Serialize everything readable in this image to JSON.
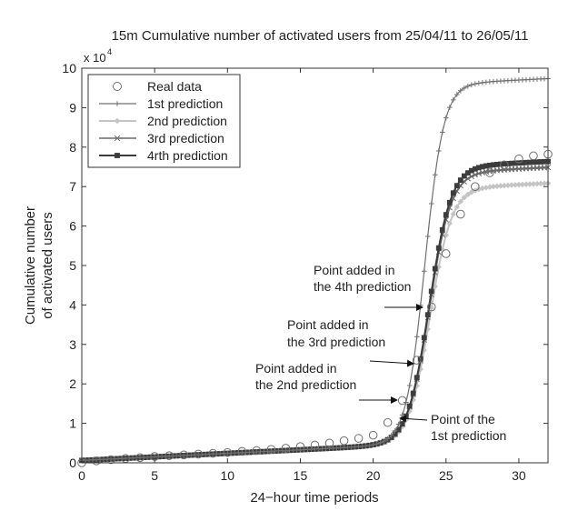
{
  "chart_data": {
    "type": "line",
    "title": "15m Cumulative number of activated users from 25/04/11 to 26/05/11",
    "xlabel": "24−hour time periods",
    "ylabel_line1": "Cumulative number",
    "ylabel_line2": "of activated users",
    "y_multiplier_base": "x 10",
    "y_multiplier_exp": "4",
    "xlim": [
      0,
      32
    ],
    "ylim": [
      0,
      10
    ],
    "y_scale_note": "values in units of 10^4 users",
    "xticks": [
      "0",
      "5",
      "10",
      "15",
      "20",
      "25",
      "30"
    ],
    "yticks": [
      "0",
      "1",
      "2",
      "3",
      "4",
      "5",
      "6",
      "7",
      "8",
      "9",
      "10"
    ],
    "grid": false,
    "legend_position": "top-left",
    "real_data": {
      "name": "Real data",
      "color": "#707070",
      "x": [
        0,
        1,
        2,
        3,
        4,
        5,
        6,
        7,
        8,
        9,
        10,
        11,
        12,
        13,
        14,
        15,
        16,
        17,
        18,
        19,
        20,
        21,
        22,
        23,
        24,
        25,
        26,
        27,
        28,
        29,
        30,
        31,
        32
      ],
      "y": [
        0.0,
        0.05,
        0.08,
        0.11,
        0.13,
        0.16,
        0.18,
        0.2,
        0.22,
        0.24,
        0.26,
        0.29,
        0.31,
        0.34,
        0.37,
        0.41,
        0.45,
        0.5,
        0.56,
        0.62,
        0.7,
        1.02,
        1.58,
        2.6,
        3.95,
        5.3,
        6.3,
        7.0,
        7.35,
        7.55,
        7.7,
        7.78,
        7.82
      ]
    },
    "series": [
      {
        "name": "1st prediction",
        "color": "#707070",
        "marker": "plus",
        "L": 9.1,
        "k": 1.55,
        "x0": 23.55
      },
      {
        "name": "2nd prediction",
        "color": "#c4c4c4",
        "marker": "diamond",
        "L": 6.45,
        "k": 1.35,
        "x0": 23.9
      },
      {
        "name": "3rd prediction",
        "color": "#6a6a6a",
        "marker": "x",
        "L": 6.85,
        "k": 1.35,
        "x0": 23.85
      },
      {
        "name": "4rth prediction",
        "color": "#3c3c3c",
        "marker": "square",
        "L": 7.0,
        "k": 1.35,
        "x0": 23.85
      }
    ],
    "baseline": {
      "a": 0.06,
      "b": 0.018
    },
    "annotations": [
      {
        "line1": "Point added in",
        "line2": "the 4th prediction",
        "arrow_x": 23.55,
        "arrow_y": 3.75
      },
      {
        "line1": "Point added in",
        "line2": "the 3rd prediction",
        "arrow_x": 22.9,
        "arrow_y": 2.52
      },
      {
        "line1": "Point added in",
        "line2": "the 2nd prediction",
        "arrow_x": 21.8,
        "arrow_y": 1.58
      },
      {
        "line1": "Point of the",
        "line2": "1st prediction",
        "arrow_x": 21.1,
        "arrow_y": 1.02
      }
    ]
  }
}
